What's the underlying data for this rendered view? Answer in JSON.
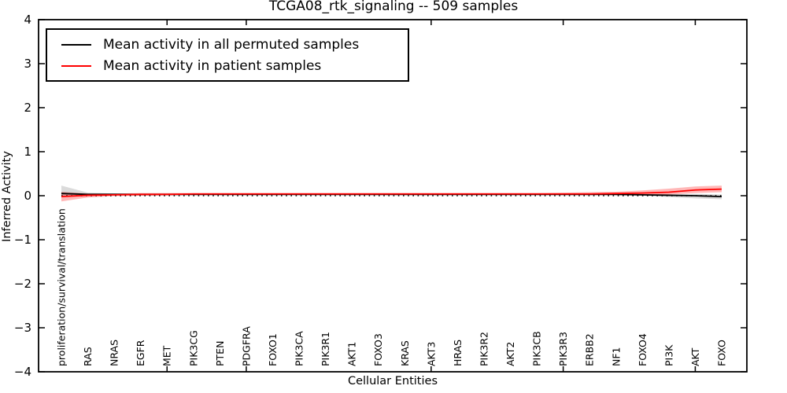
{
  "figure": {
    "title": "TCGA08_rtk_signaling -- 509 samples"
  },
  "chart_data": {
    "type": "line",
    "title": "TCGA08_rtk_signaling -- 509 samples",
    "xlabel": "Cellular Entities",
    "ylabel": "Inferred Activity",
    "ylim": [
      -4,
      4
    ],
    "grid": false,
    "legend_position": "upper left",
    "yticks": [
      4,
      3,
      2,
      1,
      0,
      -1,
      -2,
      -3,
      -4
    ],
    "ytick_labels": [
      "4",
      "3",
      "2",
      "1",
      "0",
      "−1",
      "−2",
      "−3",
      "−4"
    ],
    "zero_line": {
      "value": 0,
      "style": "dotted",
      "color": "#000000"
    },
    "top_tick_indices": [
      4,
      7,
      14,
      19,
      24
    ],
    "categories": [
      "proliferation/survival/translation",
      "RAS",
      "NRAS",
      "EGFR",
      "MET",
      "PIK3CG",
      "PTEN",
      "PDGFRA",
      "FOXO1",
      "PIK3CA",
      "PIK3R1",
      "AKT1",
      "FOXO3",
      "KRAS",
      "AKT3",
      "HRAS",
      "PIK3R2",
      "AKT2",
      "PIK3CB",
      "PIK3R3",
      "ERBB2",
      "NF1",
      "FOXO4",
      "PI3K",
      "AKT",
      "FOXO"
    ],
    "series": [
      {
        "name": "Mean activity in all permuted samples",
        "color": "#000000",
        "band_color": "rgba(0,0,0,0.14)",
        "values": [
          0.05,
          0.03,
          0.03,
          0.03,
          0.03,
          0.03,
          0.03,
          0.03,
          0.03,
          0.03,
          0.03,
          0.03,
          0.03,
          0.03,
          0.03,
          0.03,
          0.03,
          0.03,
          0.03,
          0.03,
          0.03,
          0.03,
          0.02,
          0.01,
          0.0,
          -0.02
        ],
        "band_upper": [
          0.23,
          0.07,
          0.05,
          0.04,
          0.04,
          0.04,
          0.04,
          0.04,
          0.04,
          0.04,
          0.04,
          0.04,
          0.04,
          0.04,
          0.04,
          0.04,
          0.04,
          0.04,
          0.04,
          0.04,
          0.04,
          0.04,
          0.04,
          0.04,
          0.04,
          0.03
        ],
        "band_lower": [
          -0.02,
          0.0,
          0.02,
          0.02,
          0.02,
          0.02,
          0.02,
          0.02,
          0.02,
          0.02,
          0.02,
          0.02,
          0.02,
          0.02,
          0.02,
          0.02,
          0.02,
          0.02,
          0.02,
          0.02,
          0.02,
          0.01,
          0.0,
          -0.03,
          -0.06,
          -0.08
        ]
      },
      {
        "name": "Mean activity in patient samples",
        "color": "#ff0000",
        "band_color": "rgba(255,0,0,0.28)",
        "values": [
          -0.02,
          0.01,
          0.02,
          0.03,
          0.03,
          0.04,
          0.04,
          0.04,
          0.04,
          0.04,
          0.04,
          0.04,
          0.04,
          0.04,
          0.04,
          0.04,
          0.04,
          0.04,
          0.04,
          0.04,
          0.04,
          0.05,
          0.06,
          0.08,
          0.13,
          0.15
        ],
        "band_upper": [
          0.09,
          0.05,
          0.05,
          0.06,
          0.06,
          0.06,
          0.06,
          0.06,
          0.06,
          0.06,
          0.06,
          0.06,
          0.06,
          0.06,
          0.06,
          0.06,
          0.06,
          0.06,
          0.06,
          0.07,
          0.08,
          0.09,
          0.12,
          0.16,
          0.21,
          0.23
        ],
        "band_lower": [
          -0.13,
          -0.04,
          -0.01,
          0.0,
          0.01,
          0.02,
          0.02,
          0.02,
          0.02,
          0.02,
          0.02,
          0.02,
          0.02,
          0.02,
          0.02,
          0.02,
          0.02,
          0.02,
          0.02,
          0.02,
          0.02,
          0.02,
          0.02,
          0.03,
          0.06,
          0.08
        ]
      }
    ]
  }
}
